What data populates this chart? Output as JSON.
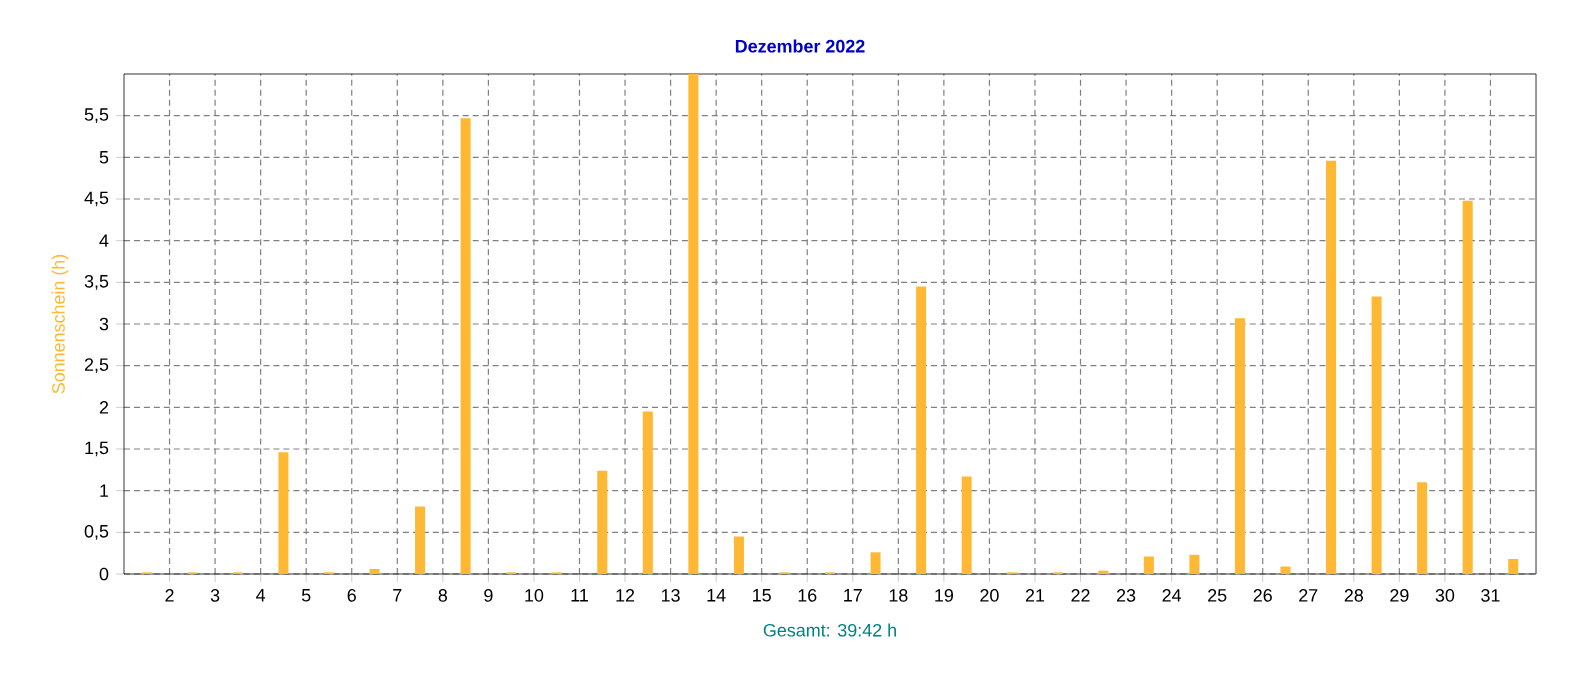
{
  "chart_data": {
    "type": "bar",
    "title": "Dezember 2022",
    "ylabel": "Sonnenschein  (h)",
    "annotations": [
      "Gesamt: 39:42 h"
    ],
    "x": [
      1.5,
      2.5,
      3.5,
      4.5,
      5.5,
      6.5,
      7.5,
      8.5,
      9.5,
      10.5,
      11.5,
      12.5,
      13.5,
      14.5,
      15.5,
      16.5,
      17.5,
      18.5,
      19.5,
      20.5,
      21.5,
      22.5,
      23.5,
      24.5,
      25.5,
      26.5,
      27.5,
      28.5,
      29.5,
      30.5,
      31.5
    ],
    "values": [
      0.02,
      0.02,
      0.02,
      1.46,
      0.02,
      0.06,
      0.81,
      5.47,
      0.02,
      0.02,
      1.24,
      1.95,
      6,
      0.45,
      0.02,
      0.02,
      0.26,
      3.45,
      1.17,
      0.02,
      0.02,
      0.04,
      0.21,
      0.23,
      3.07,
      0.09,
      4.96,
      3.33,
      1.1,
      4.48,
      0.18
    ],
    "color": "#ffb833",
    "xlim": [
      1,
      32
    ],
    "xticks": [
      2,
      3,
      4,
      5,
      6,
      7,
      8,
      9,
      10,
      11,
      12,
      13,
      14,
      15,
      16,
      17,
      18,
      19,
      20,
      21,
      22,
      23,
      24,
      25,
      26,
      27,
      28,
      29,
      30,
      31
    ],
    "ylim": [
      0,
      6
    ],
    "yticks": [
      0,
      {
        "value": 0.5,
        "label": "0,5"
      },
      1,
      {
        "value": 1.5,
        "label": "1,5"
      },
      2,
      {
        "value": 2.5,
        "label": "2,5"
      },
      3,
      {
        "value": 3.5,
        "label": "3,5"
      },
      4,
      {
        "value": 4.5,
        "label": "4,5"
      },
      5,
      {
        "value": 5.5,
        "label": "5,5"
      }
    ],
    "grid": true
  }
}
